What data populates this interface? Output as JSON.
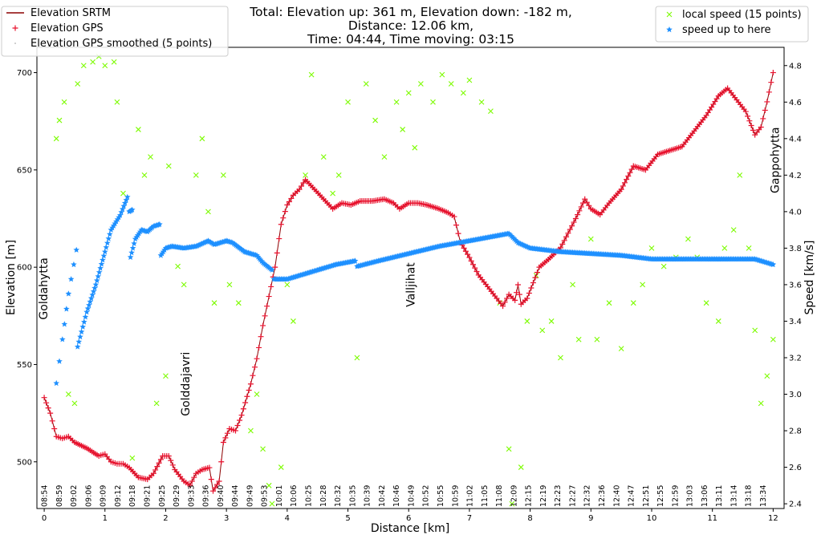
{
  "chart_data": {
    "type": "scatter",
    "title_lines": [
      "Total: Elevation up: 361 m, Elevation down: -182 m,",
      "Distance: 12.06 km,",
      "Time: 04:44, Time moving: 03:15"
    ],
    "xlabel": "Distance [km]",
    "ylabel_left": "Elevation [m]",
    "ylabel_right": "Speed [km/s]",
    "xlim": [
      -0.12,
      12.18
    ],
    "ylim_left": [
      476,
      713
    ],
    "ylim_right": [
      2.374,
      4.9
    ],
    "xticks": [
      0,
      1,
      2,
      3,
      4,
      5,
      6,
      7,
      8,
      9,
      10,
      11,
      12
    ],
    "yticks_left": [
      500,
      550,
      600,
      650,
      700
    ],
    "yticks_right": [
      2.4,
      2.6,
      2.8,
      3.0,
      3.2,
      3.4,
      3.6,
      3.8,
      4.0,
      4.2,
      4.4,
      4.6,
      4.8
    ],
    "grid": false,
    "time_ticks": [
      "08:54",
      "08:59",
      "09:02",
      "09:06",
      "09:09",
      "09:12",
      "09:18",
      "09:21",
      "09:25",
      "09:29",
      "09:33",
      "09:36",
      "09:40",
      "09:44",
      "09:49",
      "09:53",
      "10:01",
      "10:06",
      "10:25",
      "10:28",
      "10:32",
      "10:35",
      "10:39",
      "10:42",
      "10:46",
      "10:49",
      "10:52",
      "10:55",
      "10:59",
      "11:02",
      "11:05",
      "11:08",
      "12:09",
      "12:15",
      "12:19",
      "12:23",
      "12:27",
      "12:32",
      "12:36",
      "12:40",
      "12:47",
      "12:51",
      "12:55",
      "12:59",
      "13:03",
      "13:06",
      "13:11",
      "13:14",
      "13:18",
      "13:34"
    ],
    "time_ticks_range_km": [
      0,
      11.83
    ],
    "annotations": [
      {
        "text": "Goldahytta",
        "x": 0.0,
        "y": 589
      },
      {
        "text": "Golddajavri",
        "x": 2.34,
        "y": 540
      },
      {
        "text": "Valljihat",
        "x": 6.04,
        "y": 591
      },
      {
        "text": "Gappohytta",
        "x": 12.04,
        "y": 655
      }
    ],
    "legend_left": {
      "placement": "top-left",
      "entries": [
        {
          "label": "Elevation SRTM",
          "marker": "line",
          "color": "#8b0000"
        },
        {
          "label": "Elevation GPS",
          "marker": "+",
          "color": "#e8112d"
        },
        {
          "label": "Elevation GPS smoothed (5 points)",
          "marker": ".",
          "color": "#999999"
        }
      ]
    },
    "legend_right": {
      "placement": "top-right",
      "entries": [
        {
          "label": "local speed (15 points)",
          "marker": "x",
          "color": "#7cfc00"
        },
        {
          "label": "speed up to here",
          "marker": "*",
          "color": "#1e90ff"
        }
      ]
    },
    "series": [
      {
        "name": "Elevation GPS",
        "axis": "left",
        "color": "#e8112d",
        "points": [
          [
            0,
            533
          ],
          [
            0.1,
            525
          ],
          [
            0.2,
            513
          ],
          [
            0.3,
            512
          ],
          [
            0.4,
            513
          ],
          [
            0.5,
            510
          ],
          [
            0.7,
            507
          ],
          [
            0.9,
            503
          ],
          [
            1.0,
            504
          ],
          [
            1.1,
            500
          ],
          [
            1.2,
            499
          ],
          [
            1.3,
            499
          ],
          [
            1.4,
            497
          ],
          [
            1.55,
            492
          ],
          [
            1.7,
            491
          ],
          [
            1.8,
            494
          ],
          [
            1.95,
            503
          ],
          [
            2.05,
            503
          ],
          [
            2.15,
            496
          ],
          [
            2.3,
            490
          ],
          [
            2.4,
            488
          ],
          [
            2.5,
            494
          ],
          [
            2.6,
            496
          ],
          [
            2.72,
            497
          ],
          [
            2.78,
            485
          ],
          [
            2.88,
            490
          ],
          [
            2.95,
            510
          ],
          [
            3.05,
            517
          ],
          [
            3.15,
            516
          ],
          [
            3.25,
            524
          ],
          [
            3.4,
            540
          ],
          [
            3.5,
            553
          ],
          [
            3.6,
            570
          ],
          [
            3.7,
            585
          ],
          [
            3.8,
            600
          ],
          [
            3.9,
            622
          ],
          [
            4.0,
            632
          ],
          [
            4.1,
            637
          ],
          [
            4.2,
            640
          ],
          [
            4.3,
            645
          ],
          [
            4.45,
            640
          ],
          [
            4.6,
            635
          ],
          [
            4.75,
            630
          ],
          [
            4.9,
            633
          ],
          [
            5.05,
            632
          ],
          [
            5.2,
            634
          ],
          [
            5.4,
            634
          ],
          [
            5.6,
            635
          ],
          [
            5.75,
            633
          ],
          [
            5.85,
            630
          ],
          [
            6.0,
            633
          ],
          [
            6.15,
            633
          ],
          [
            6.3,
            632
          ],
          [
            6.5,
            630
          ],
          [
            6.65,
            628
          ],
          [
            6.75,
            626
          ],
          [
            6.85,
            613
          ],
          [
            7.0,
            605
          ],
          [
            7.15,
            596
          ],
          [
            7.3,
            590
          ],
          [
            7.45,
            584
          ],
          [
            7.55,
            580
          ],
          [
            7.65,
            586
          ],
          [
            7.75,
            583
          ],
          [
            7.8,
            591
          ],
          [
            7.85,
            581
          ],
          [
            7.95,
            584
          ],
          [
            8.05,
            592
          ],
          [
            8.15,
            600
          ],
          [
            8.3,
            604
          ],
          [
            8.5,
            610
          ],
          [
            8.75,
            625
          ],
          [
            8.9,
            635
          ],
          [
            9.0,
            630
          ],
          [
            9.15,
            627
          ],
          [
            9.3,
            633
          ],
          [
            9.5,
            640
          ],
          [
            9.7,
            652
          ],
          [
            9.9,
            650
          ],
          [
            10.1,
            658
          ],
          [
            10.3,
            660
          ],
          [
            10.5,
            662
          ],
          [
            10.7,
            670
          ],
          [
            10.9,
            678
          ],
          [
            11.1,
            688
          ],
          [
            11.25,
            692
          ],
          [
            11.4,
            686
          ],
          [
            11.55,
            680
          ],
          [
            11.7,
            668
          ],
          [
            11.8,
            672
          ],
          [
            11.9,
            685
          ],
          [
            12.0,
            700
          ]
        ]
      },
      {
        "name": "speed up to here",
        "axis": "right",
        "color": "#1e90ff",
        "segments": [
          [
            [
              0.2,
              3.06
            ],
            [
              0.3,
              3.3
            ],
            [
              0.4,
              3.55
            ],
            [
              0.53,
              3.79
            ]
          ],
          [
            [
              0.55,
              3.26
            ],
            [
              0.7,
              3.45
            ],
            [
              0.85,
              3.6
            ],
            [
              1.0,
              3.78
            ],
            [
              1.1,
              3.9
            ],
            [
              1.25,
              3.98
            ],
            [
              1.37,
              4.08
            ]
          ],
          [
            [
              1.4,
              4.0
            ],
            [
              1.45,
              4.01
            ]
          ],
          [
            [
              1.42,
              3.75
            ],
            [
              1.5,
              3.85
            ],
            [
              1.6,
              3.9
            ],
            [
              1.7,
              3.89
            ],
            [
              1.8,
              3.92
            ],
            [
              1.9,
              3.93
            ]
          ],
          [
            [
              1.92,
              3.76
            ],
            [
              2.0,
              3.8
            ],
            [
              2.1,
              3.81
            ],
            [
              2.3,
              3.8
            ],
            [
              2.5,
              3.81
            ],
            [
              2.7,
              3.84
            ],
            [
              2.8,
              3.82
            ],
            [
              3.0,
              3.84
            ],
            [
              3.1,
              3.83
            ],
            [
              3.3,
              3.78
            ],
            [
              3.5,
              3.76
            ],
            [
              3.6,
              3.72
            ],
            [
              3.75,
              3.68
            ]
          ],
          [
            [
              3.78,
              3.63
            ],
            [
              4.0,
              3.63
            ],
            [
              4.2,
              3.65
            ],
            [
              4.5,
              3.68
            ],
            [
              4.8,
              3.71
            ],
            [
              5.12,
              3.73
            ]
          ],
          [
            [
              5.15,
              3.7
            ],
            [
              5.5,
              3.73
            ],
            [
              6.0,
              3.77
            ],
            [
              6.5,
              3.81
            ],
            [
              7.0,
              3.84
            ],
            [
              7.65,
              3.88
            ],
            [
              7.8,
              3.83
            ],
            [
              8.0,
              3.8
            ],
            [
              8.5,
              3.78
            ],
            [
              9.0,
              3.77
            ],
            [
              9.5,
              3.76
            ],
            [
              10.0,
              3.74
            ],
            [
              10.5,
              3.74
            ],
            [
              11.0,
              3.74
            ],
            [
              11.5,
              3.74
            ],
            [
              11.7,
              3.74
            ],
            [
              12.0,
              3.71
            ]
          ]
        ]
      },
      {
        "name": "local speed (15 points)",
        "axis": "right",
        "color": "#7cfc00",
        "points": [
          [
            0.2,
            4.4
          ],
          [
            0.25,
            4.5
          ],
          [
            0.33,
            4.6
          ],
          [
            0.4,
            3.0
          ],
          [
            0.5,
            2.95
          ],
          [
            0.55,
            4.7
          ],
          [
            0.65,
            4.8
          ],
          [
            0.8,
            4.82
          ],
          [
            0.9,
            4.85
          ],
          [
            1.0,
            4.8
          ],
          [
            1.15,
            4.82
          ],
          [
            1.2,
            4.6
          ],
          [
            1.3,
            4.1
          ],
          [
            1.45,
            2.65
          ],
          [
            1.55,
            4.45
          ],
          [
            1.65,
            4.2
          ],
          [
            1.75,
            4.3
          ],
          [
            1.85,
            2.95
          ],
          [
            2.0,
            3.1
          ],
          [
            2.05,
            4.25
          ],
          [
            2.2,
            3.7
          ],
          [
            2.3,
            3.6
          ],
          [
            2.5,
            4.2
          ],
          [
            2.6,
            4.4
          ],
          [
            2.7,
            4.0
          ],
          [
            2.8,
            3.5
          ],
          [
            2.95,
            4.2
          ],
          [
            3.05,
            3.6
          ],
          [
            3.2,
            3.5
          ],
          [
            3.4,
            2.8
          ],
          [
            3.5,
            3.0
          ],
          [
            3.6,
            2.7
          ],
          [
            3.7,
            2.5
          ],
          [
            3.75,
            2.4
          ],
          [
            3.9,
            2.6
          ],
          [
            4.0,
            3.6
          ],
          [
            4.1,
            3.4
          ],
          [
            4.3,
            4.2
          ],
          [
            4.4,
            4.75
          ],
          [
            4.6,
            4.3
          ],
          [
            4.75,
            4.1
          ],
          [
            4.85,
            4.2
          ],
          [
            5.0,
            4.6
          ],
          [
            5.15,
            3.2
          ],
          [
            5.3,
            4.7
          ],
          [
            5.45,
            4.5
          ],
          [
            5.6,
            4.3
          ],
          [
            5.8,
            4.6
          ],
          [
            5.9,
            4.45
          ],
          [
            6.0,
            4.65
          ],
          [
            6.1,
            4.35
          ],
          [
            6.2,
            4.7
          ],
          [
            6.4,
            4.6
          ],
          [
            6.55,
            4.75
          ],
          [
            6.7,
            4.7
          ],
          [
            6.9,
            4.65
          ],
          [
            7.0,
            4.72
          ],
          [
            7.2,
            4.6
          ],
          [
            7.35,
            4.55
          ],
          [
            7.5,
            3.5
          ],
          [
            7.65,
            2.7
          ],
          [
            7.7,
            2.4
          ],
          [
            7.85,
            2.6
          ],
          [
            7.95,
            3.4
          ],
          [
            8.1,
            3.65
          ],
          [
            8.2,
            3.35
          ],
          [
            8.35,
            3.4
          ],
          [
            8.5,
            3.2
          ],
          [
            8.7,
            3.6
          ],
          [
            8.8,
            3.3
          ],
          [
            9.0,
            3.85
          ],
          [
            9.1,
            3.3
          ],
          [
            9.3,
            3.5
          ],
          [
            9.5,
            3.25
          ],
          [
            9.7,
            3.5
          ],
          [
            9.85,
            3.6
          ],
          [
            10.0,
            3.8
          ],
          [
            10.2,
            3.7
          ],
          [
            10.4,
            3.75
          ],
          [
            10.6,
            3.85
          ],
          [
            10.75,
            3.75
          ],
          [
            10.9,
            3.5
          ],
          [
            11.1,
            3.4
          ],
          [
            11.2,
            3.8
          ],
          [
            11.35,
            3.9
          ],
          [
            11.45,
            4.2
          ],
          [
            11.6,
            3.8
          ],
          [
            11.7,
            3.35
          ],
          [
            11.8,
            2.95
          ],
          [
            11.9,
            3.1
          ],
          [
            12.0,
            3.3
          ]
        ]
      }
    ]
  }
}
